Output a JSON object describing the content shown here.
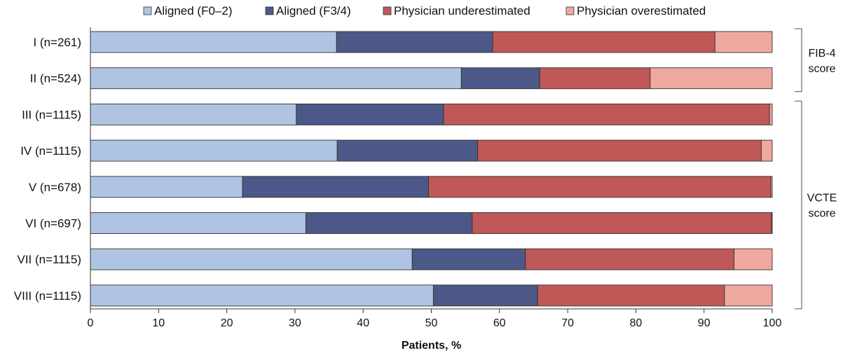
{
  "chart_data": {
    "type": "bar",
    "orientation": "horizontal",
    "stacked": true,
    "xlabel": "Patients, %",
    "xlim": [
      0,
      100
    ],
    "x_ticks": [
      0,
      10,
      20,
      30,
      40,
      50,
      60,
      70,
      80,
      90,
      100
    ],
    "legend_position": "top",
    "categories": [
      "I (n=261)",
      "II (n=524)",
      "III (n=1115)",
      "IV (n=1115)",
      "V (n=678)",
      "VI (n=697)",
      "VII (n=1115)",
      "VIII (n=1115)"
    ],
    "series": [
      {
        "name": "Aligned (F0–2)",
        "color": "#aec4e2",
        "values": [
          36.1,
          54.4,
          30.2,
          36.2,
          22.3,
          31.6,
          47.2,
          50.3
        ]
      },
      {
        "name": "Aligned (F3/4)",
        "color": "#4c5887",
        "values": [
          22.9,
          11.5,
          21.6,
          20.6,
          27.3,
          24.4,
          16.6,
          15.3
        ]
      },
      {
        "name": "Physician underestimated",
        "color": "#c05858",
        "values": [
          32.6,
          16.2,
          47.8,
          41.6,
          50.2,
          43.9,
          30.6,
          27.4
        ]
      },
      {
        "name": "Physician overestimated",
        "color": "#eea8a0",
        "values": [
          8.4,
          17.9,
          0.4,
          1.6,
          0.2,
          0.1,
          5.6,
          7.0
        ]
      }
    ],
    "groups": [
      {
        "label_lines": [
          "FIB-4",
          "score"
        ],
        "categories": [
          0,
          1
        ]
      },
      {
        "label_lines": [
          "VCTE",
          "score"
        ],
        "categories": [
          2,
          3,
          4,
          5,
          6,
          7
        ]
      }
    ]
  }
}
